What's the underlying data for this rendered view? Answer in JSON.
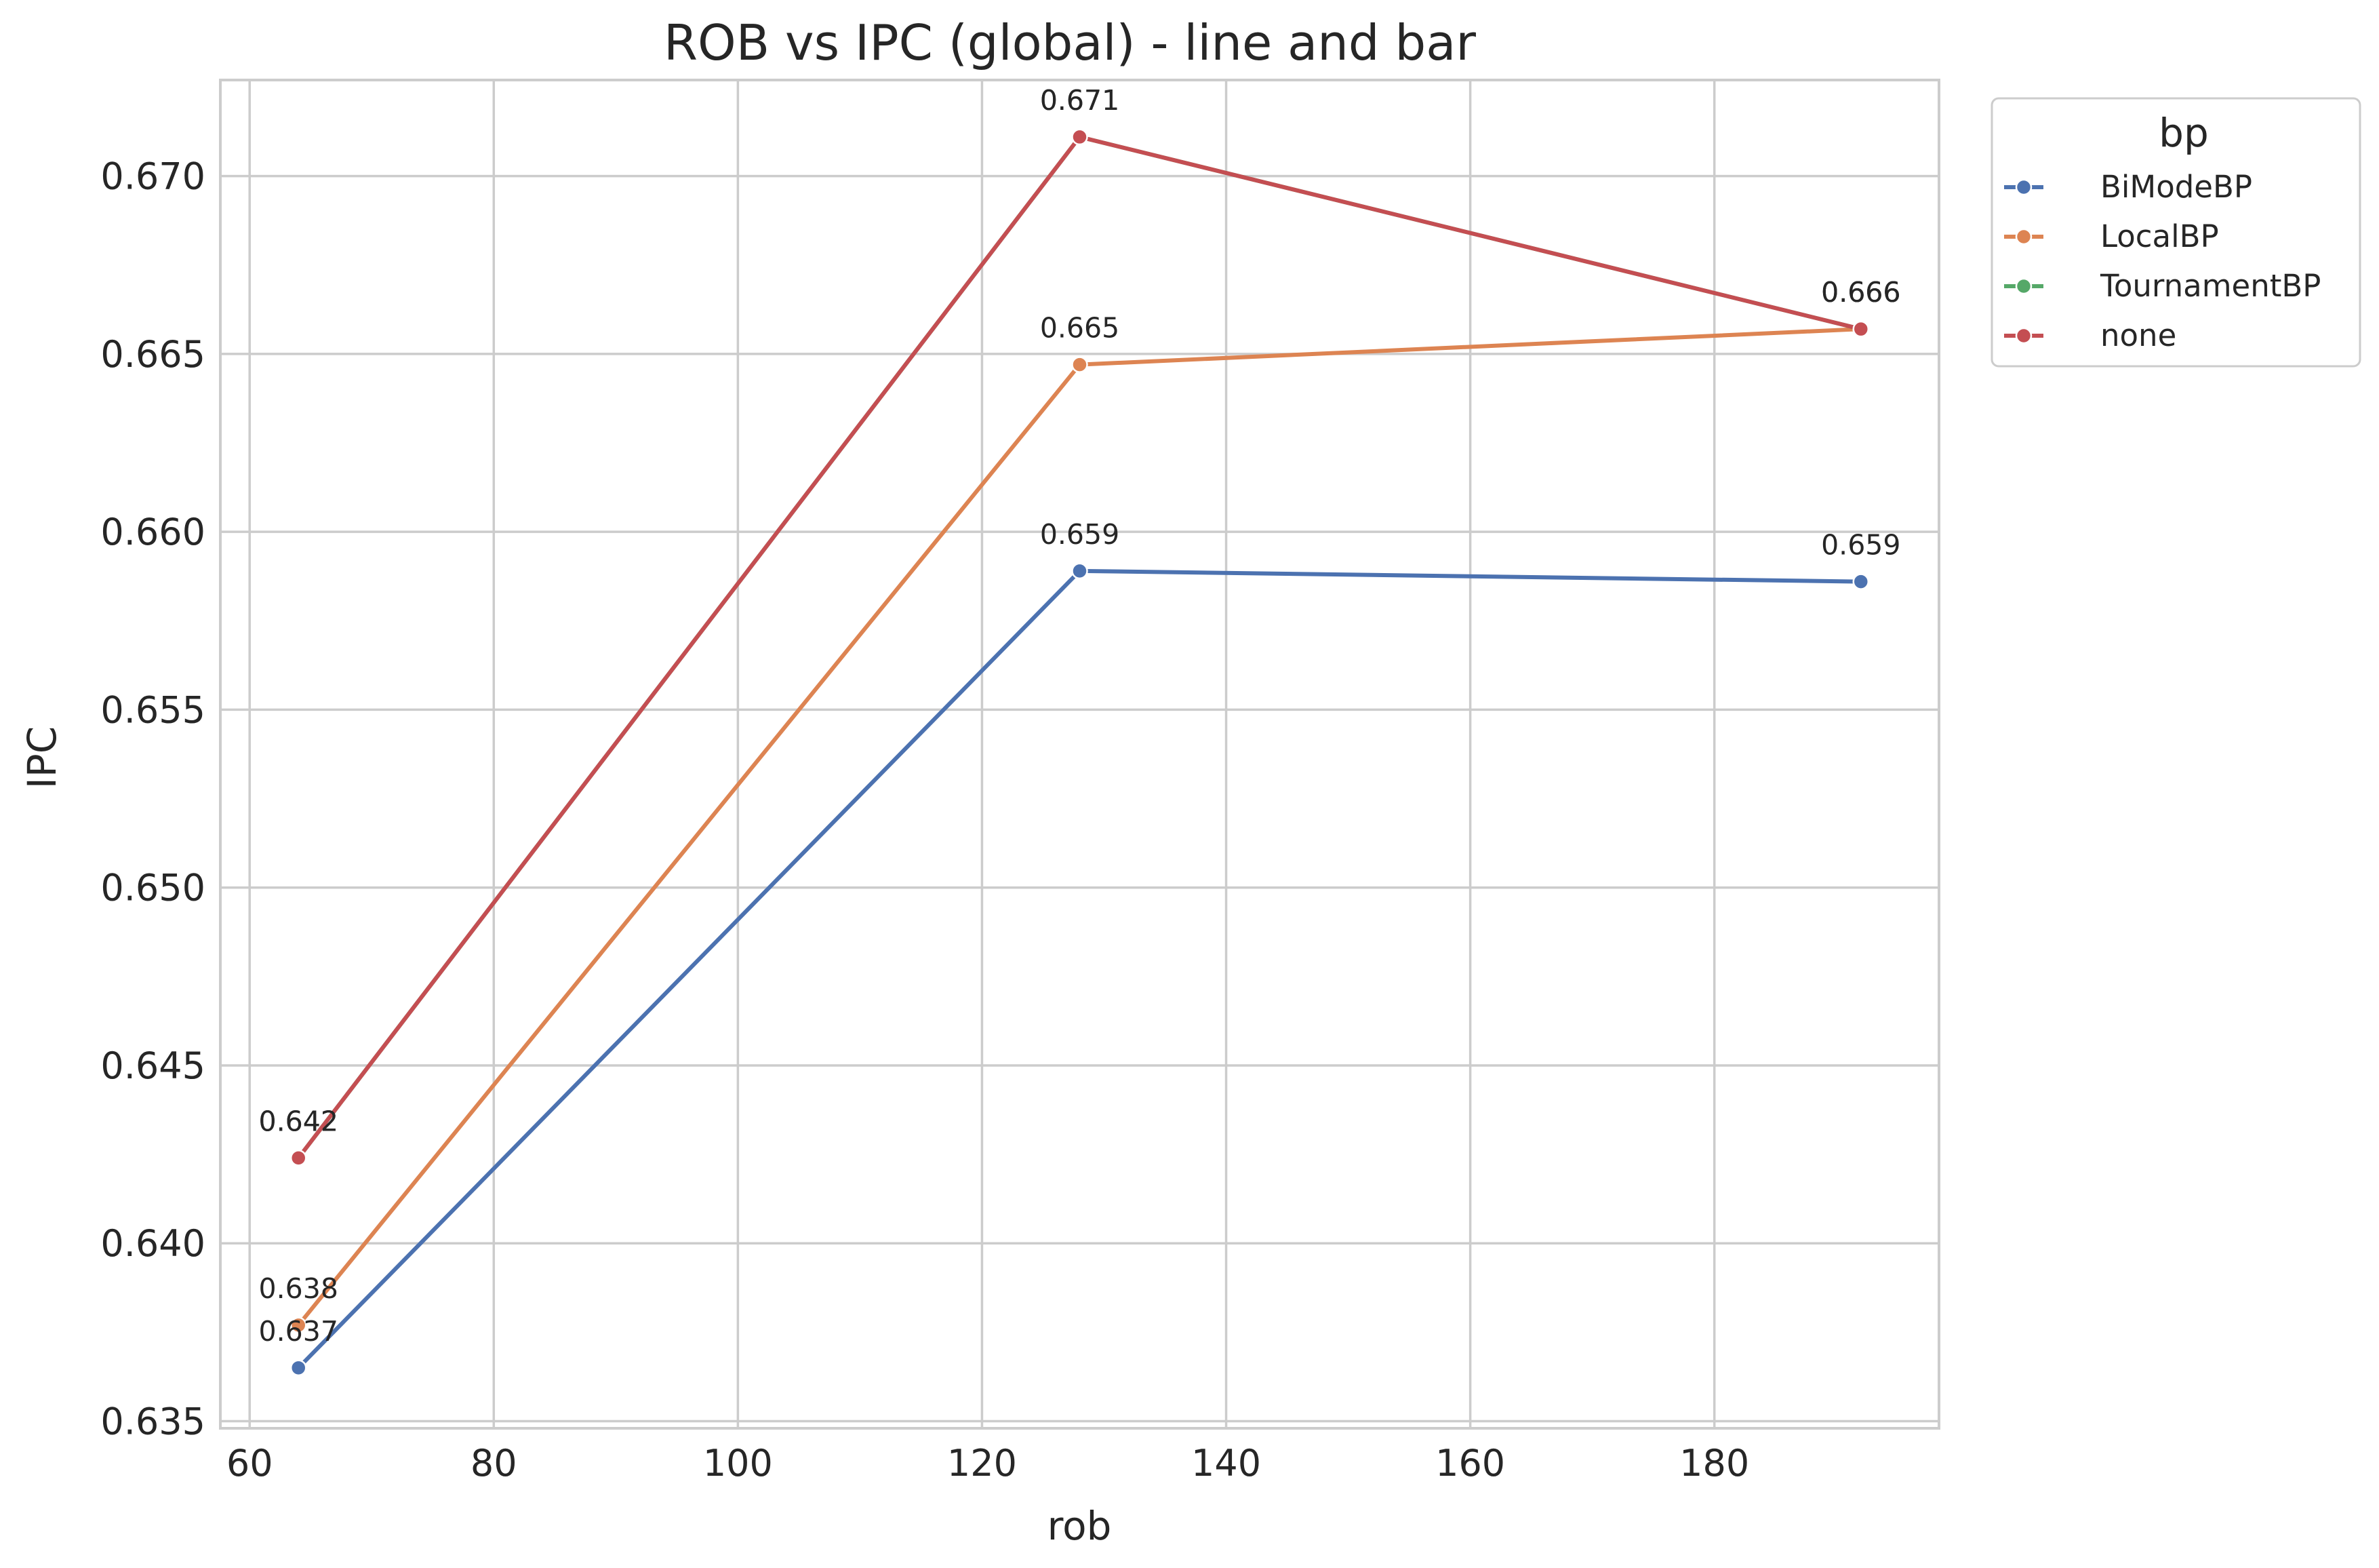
{
  "chart_data": {
    "type": "line",
    "title": "ROB vs IPC (global) - line and bar",
    "xlabel": "rob",
    "ylabel": "IPC",
    "x": [
      64,
      128,
      192
    ],
    "xlim": [
      57.6,
      198.4
    ],
    "ylim": [
      0.6348,
      0.6727
    ],
    "xticks": [
      60,
      80,
      100,
      120,
      140,
      160,
      180
    ],
    "xtick_labels": [
      "60",
      "80",
      "100",
      "120",
      "140",
      "160",
      "180"
    ],
    "yticks": [
      0.635,
      0.64,
      0.645,
      0.65,
      0.655,
      0.66,
      0.665,
      0.67
    ],
    "ytick_labels": [
      "0.635",
      "0.640",
      "0.645",
      "0.650",
      "0.655",
      "0.660",
      "0.665",
      "0.670"
    ],
    "grid": true,
    "legend": {
      "title": "bp",
      "placement": "outside-top-right"
    },
    "series": [
      {
        "name": "BiModeBP",
        "color": "#4c72b0",
        "values": [
          0.6365,
          0.6589,
          0.6586
        ],
        "labels": [
          "0.637",
          "0.659",
          "0.659"
        ]
      },
      {
        "name": "LocalBP",
        "color": "#dd8452",
        "values": [
          0.6377,
          0.6647,
          0.6657
        ],
        "labels": [
          "0.638",
          "0.665",
          "0.666"
        ]
      },
      {
        "name": "TournamentBP",
        "color": "#55a868",
        "values": [
          0.6424,
          0.6711,
          0.6657
        ],
        "labels": [
          "0.642",
          "0.671",
          "0.666"
        ]
      },
      {
        "name": "none",
        "color": "#c44e52",
        "values": [
          0.6424,
          0.6711,
          0.6657
        ],
        "labels": [
          "0.642",
          "0.671",
          "0.666"
        ]
      }
    ]
  }
}
